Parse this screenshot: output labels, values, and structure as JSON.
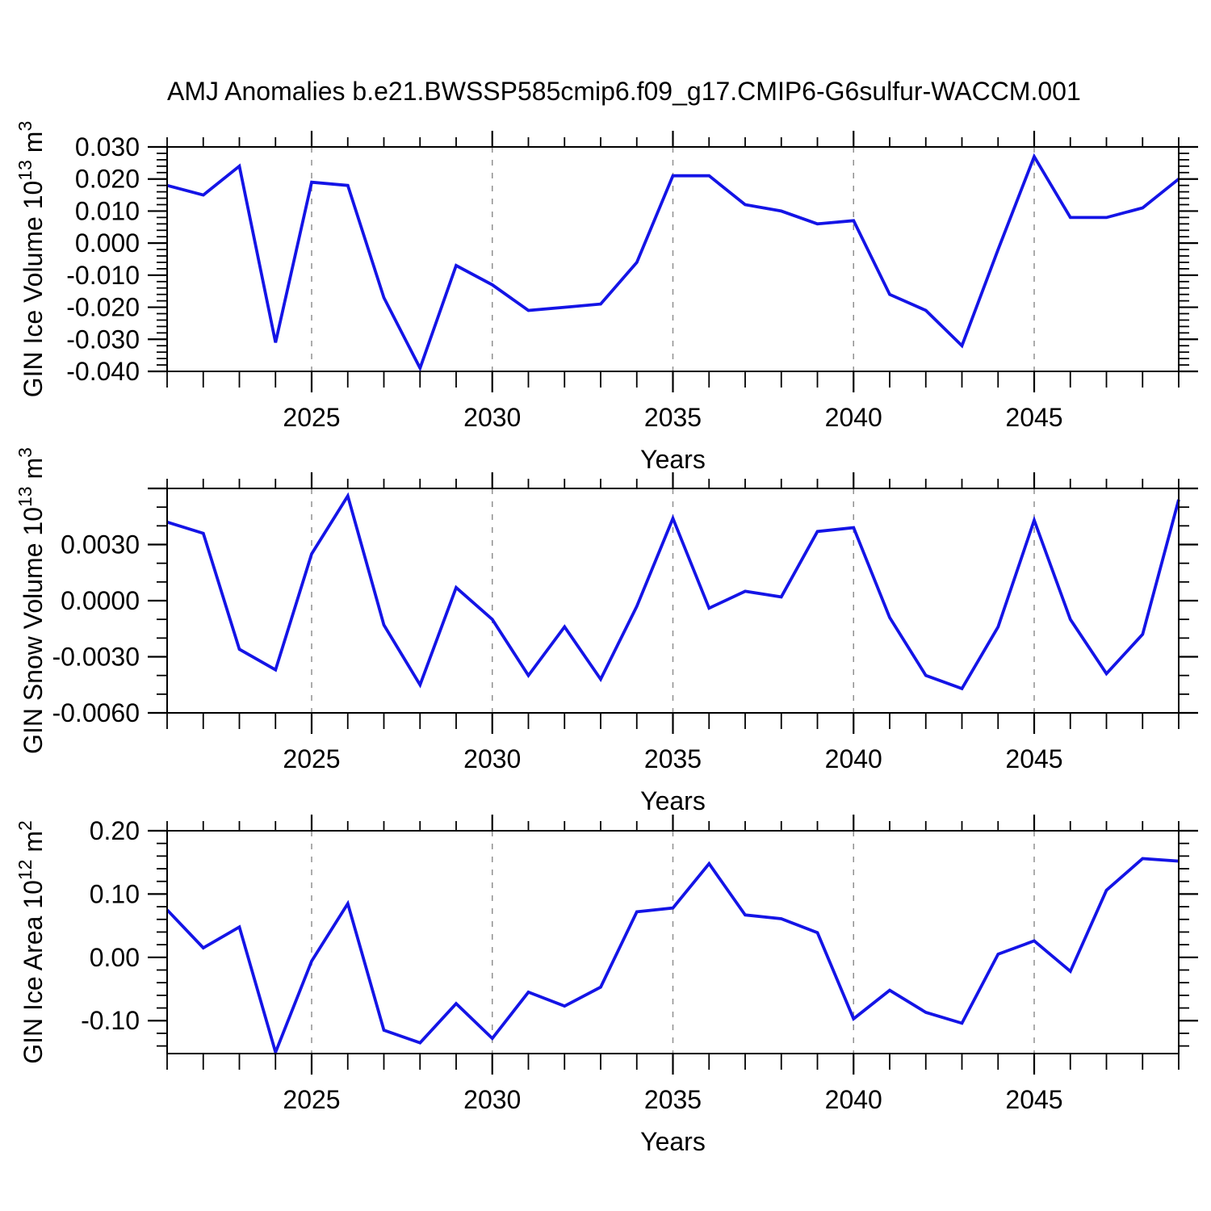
{
  "title": "AMJ Anomalies b.e21.BWSSP585cmip6.f09_g17.CMIP6-G6sulfur-WACCM.001",
  "line_color": "#1414e6",
  "grid_color": "#909090",
  "axis_color": "#000000",
  "x_axis": {
    "label": "Years",
    "range": [
      2021,
      2049
    ],
    "major_ticks": [
      2025,
      2030,
      2035,
      2040,
      2045
    ],
    "major_tick_labels": [
      "2025",
      "2030",
      "2035",
      "2040",
      "2045"
    ],
    "minor_step_years": 1
  },
  "years": [
    2021,
    2022,
    2023,
    2024,
    2025,
    2026,
    2027,
    2028,
    2029,
    2030,
    2031,
    2032,
    2033,
    2034,
    2035,
    2036,
    2037,
    2038,
    2039,
    2040,
    2041,
    2042,
    2043,
    2044,
    2045,
    2046,
    2047,
    2048,
    2049
  ],
  "chart_data": [
    {
      "type": "line",
      "name": "gin-ice-volume",
      "ylabel_parts": [
        {
          "t": "GIN Ice Volume 10",
          "sup": false
        },
        {
          "t": "13",
          "sup": true
        },
        {
          "t": " m",
          "sup": false
        },
        {
          "t": "3",
          "sup": true
        }
      ],
      "xlabel": "Years",
      "ylim": [
        -0.04,
        0.03
      ],
      "yticks": [
        {
          "v": 0.03,
          "label": "0.030"
        },
        {
          "v": 0.02,
          "label": "0.020"
        },
        {
          "v": 0.01,
          "label": "0.010"
        },
        {
          "v": 0.0,
          "label": "0.000"
        },
        {
          "v": -0.01,
          "label": "-0.010"
        },
        {
          "v": -0.02,
          "label": "-0.020"
        },
        {
          "v": -0.03,
          "label": "-0.030"
        },
        {
          "v": -0.04,
          "label": "-0.040"
        }
      ],
      "minor_step": 0.002,
      "values": [
        0.018,
        0.015,
        0.024,
        -0.031,
        0.019,
        0.018,
        -0.017,
        -0.039,
        -0.007,
        -0.013,
        -0.021,
        -0.02,
        -0.019,
        -0.006,
        0.021,
        0.021,
        0.012,
        0.01,
        0.006,
        0.007,
        -0.016,
        -0.021,
        -0.032,
        -0.002,
        0.027,
        0.008,
        0.008,
        0.011,
        0.02
      ]
    },
    {
      "type": "line",
      "name": "gin-snow-volume",
      "ylabel_parts": [
        {
          "t": "GIN Snow Volume 10",
          "sup": false
        },
        {
          "t": "13",
          "sup": true
        },
        {
          "t": " m",
          "sup": false
        },
        {
          "t": "3",
          "sup": true
        }
      ],
      "xlabel": "Years",
      "ylim": [
        -0.006,
        0.006
      ],
      "yticks": [
        {
          "v": 0.006,
          "label": ""
        },
        {
          "v": 0.003,
          "label": "0.0030"
        },
        {
          "v": 0.0,
          "label": "0.0000"
        },
        {
          "v": -0.003,
          "label": "-0.0030"
        },
        {
          "v": -0.006,
          "label": "-0.0060"
        }
      ],
      "minor_step": 0.001,
      "values": [
        0.0042,
        0.0036,
        -0.0026,
        -0.0037,
        0.0025,
        0.0056,
        -0.0013,
        -0.0045,
        0.0007,
        -0.001,
        -0.004,
        -0.0014,
        -0.0042,
        -0.0003,
        0.0044,
        -0.0004,
        0.0005,
        0.0002,
        0.0037,
        0.0039,
        -0.0009,
        -0.004,
        -0.0047,
        -0.0014,
        0.0043,
        -0.001,
        -0.0039,
        -0.0018,
        0.0054
      ]
    },
    {
      "type": "line",
      "name": "gin-ice-area",
      "ylabel_parts": [
        {
          "t": "GIN Ice Area 10",
          "sup": false
        },
        {
          "t": "12",
          "sup": true
        },
        {
          "t": " m",
          "sup": false
        },
        {
          "t": "2",
          "sup": true
        }
      ],
      "xlabel": "Years",
      "ylim": [
        -0.152,
        0.2
      ],
      "yticks": [
        {
          "v": 0.2,
          "label": "0.20"
        },
        {
          "v": 0.1,
          "label": "0.10"
        },
        {
          "v": 0.0,
          "label": "0.00"
        },
        {
          "v": -0.1,
          "label": "-0.10"
        }
      ],
      "minor_step": 0.02,
      "values": [
        0.075,
        0.015,
        0.048,
        -0.15,
        -0.006,
        0.085,
        -0.115,
        -0.135,
        -0.073,
        -0.128,
        -0.055,
        -0.077,
        -0.047,
        0.072,
        0.078,
        0.148,
        0.067,
        0.061,
        0.039,
        -0.097,
        -0.052,
        -0.087,
        -0.104,
        0.005,
        0.026,
        -0.022,
        0.106,
        0.156,
        0.152
      ]
    }
  ]
}
